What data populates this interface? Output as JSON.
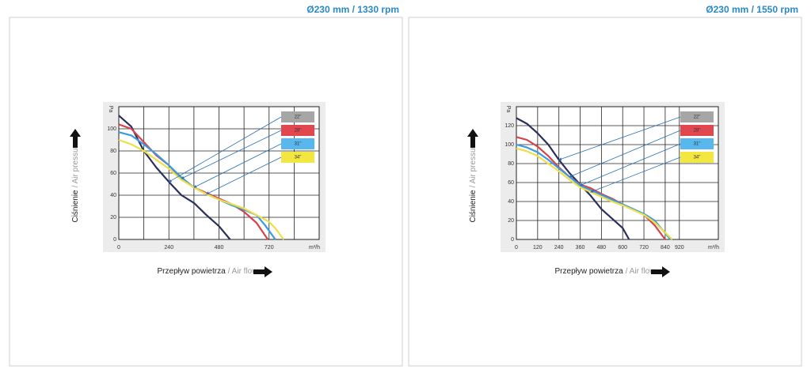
{
  "chart_data": [
    {
      "type": "line",
      "title": "Ø230 mm / 1330 rpm",
      "ylabel": "Ciśnienie",
      "ylabel_en": "/ Air pressure",
      "yunit": "Pa",
      "xlabel": "Przepływ powietrza",
      "xlabel_en": "/ Air flow",
      "xunit": "m³/h",
      "xlim": [
        0,
        960
      ],
      "xticks": [
        0,
        240,
        480,
        720
      ],
      "minor_x_grid": true,
      "ylim": [
        0,
        120
      ],
      "yticks": [
        0,
        20,
        40,
        60,
        80,
        100
      ],
      "grid": true,
      "series": [
        {
          "name": "22\"",
          "color": "#2b2f5c",
          "legend_color": "#a6a6a6",
          "x": [
            0,
            60,
            120,
            180,
            240,
            300,
            360,
            420,
            480,
            533
          ],
          "values": [
            112,
            102,
            80,
            65,
            52,
            40,
            33,
            22,
            12,
            0
          ]
        },
        {
          "name": "28\"",
          "color": "#d9414a",
          "legend_color": "#e0474f",
          "x": [
            0,
            60,
            120,
            180,
            240,
            300,
            360,
            420,
            480,
            540,
            600,
            660,
            714
          ],
          "values": [
            104,
            100,
            88,
            76,
            67,
            55,
            47,
            42,
            37,
            32,
            25,
            15,
            0
          ]
        },
        {
          "name": "31\"",
          "color": "#3a9be0",
          "legend_color": "#58b7ec",
          "x": [
            0,
            60,
            120,
            180,
            240,
            300,
            360,
            420,
            480,
            540,
            600,
            660,
            700,
            750
          ],
          "values": [
            97,
            94,
            86,
            77,
            67,
            56,
            47,
            41,
            36,
            31,
            27,
            22,
            13,
            0
          ]
        },
        {
          "name": "34\"",
          "color": "#ecdf4a",
          "legend_color": "#f2e640",
          "x": [
            0,
            60,
            120,
            180,
            240,
            300,
            360,
            420,
            480,
            540,
            600,
            660,
            720,
            750,
            790
          ],
          "values": [
            90,
            86,
            80,
            72,
            64,
            54,
            47,
            41,
            36,
            32,
            28,
            22,
            16,
            10,
            0
          ]
        }
      ]
    },
    {
      "type": "line",
      "title": "Ø230 mm / 1550 rpm",
      "ylabel": "Ciśnienie",
      "ylabel_en": "/ Air pressure",
      "yunit": "Pa",
      "xlabel": "Przepływ powietrza",
      "xlabel_en": "/ Air flow",
      "xunit": "m³/h",
      "xlim": [
        0,
        1140
      ],
      "xticks": [
        0,
        120,
        240,
        360,
        480,
        600,
        720,
        840,
        920
      ],
      "minor_x_grid": false,
      "ylim": [
        0,
        140
      ],
      "yticks": [
        0,
        20,
        40,
        60,
        80,
        100,
        120
      ],
      "grid": true,
      "series": [
        {
          "name": "22\"",
          "color": "#2b2f5c",
          "legend_color": "#a6a6a6",
          "x": [
            0,
            60,
            120,
            180,
            240,
            300,
            360,
            420,
            480,
            540,
            600,
            636
          ],
          "values": [
            128,
            122,
            112,
            100,
            84,
            70,
            58,
            46,
            32,
            22,
            12,
            0
          ]
        },
        {
          "name": "28\"",
          "color": "#d9414a",
          "legend_color": "#e0474f",
          "x": [
            0,
            60,
            120,
            180,
            240,
            300,
            360,
            420,
            480,
            540,
            600,
            660,
            720,
            780,
            840
          ],
          "values": [
            108,
            105,
            98,
            88,
            76,
            66,
            58,
            54,
            48,
            43,
            37,
            32,
            26,
            15,
            0
          ]
        },
        {
          "name": "31\"",
          "color": "#3a9be0",
          "legend_color": "#58b7ec",
          "x": [
            0,
            60,
            120,
            180,
            240,
            300,
            360,
            420,
            480,
            540,
            600,
            660,
            720,
            780,
            870
          ],
          "values": [
            100,
            97,
            92,
            84,
            75,
            66,
            57,
            52,
            47,
            42,
            37,
            32,
            27,
            20,
            0
          ]
        },
        {
          "name": "34\"",
          "color": "#ecdf4a",
          "legend_color": "#f2e640",
          "x": [
            0,
            60,
            120,
            180,
            240,
            300,
            360,
            420,
            480,
            540,
            600,
            660,
            720,
            780,
            880
          ],
          "values": [
            96,
            93,
            88,
            80,
            72,
            63,
            55,
            50,
            45,
            40,
            36,
            31,
            26,
            18,
            0
          ]
        }
      ]
    }
  ]
}
